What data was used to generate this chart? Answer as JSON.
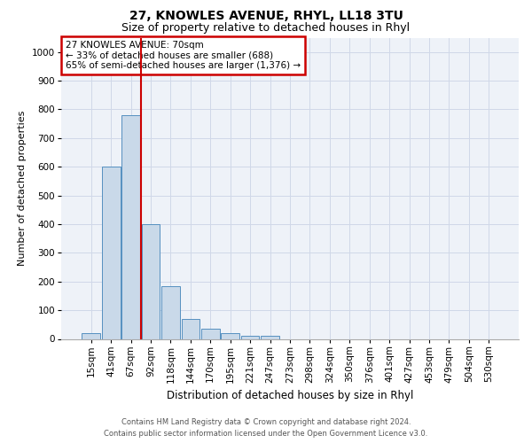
{
  "title": "27, KNOWLES AVENUE, RHYL, LL18 3TU",
  "subtitle": "Size of property relative to detached houses in Rhyl",
  "xlabel": "Distribution of detached houses by size in Rhyl",
  "ylabel": "Number of detached properties",
  "bin_labels": [
    "15sqm",
    "41sqm",
    "67sqm",
    "92sqm",
    "118sqm",
    "144sqm",
    "170sqm",
    "195sqm",
    "221sqm",
    "247sqm",
    "273sqm",
    "298sqm",
    "324sqm",
    "350sqm",
    "376sqm",
    "401sqm",
    "427sqm",
    "453sqm",
    "479sqm",
    "504sqm",
    "530sqm"
  ],
  "bar_heights": [
    20,
    600,
    780,
    400,
    185,
    70,
    35,
    20,
    10,
    12,
    0,
    0,
    0,
    0,
    0,
    0,
    0,
    0,
    0,
    0,
    0
  ],
  "bar_color": "#c9d9e9",
  "bar_edge_color": "#5590c0",
  "ylim": [
    0,
    1050
  ],
  "yticks": [
    0,
    100,
    200,
    300,
    400,
    500,
    600,
    700,
    800,
    900,
    1000
  ],
  "property_line_color": "#cc0000",
  "annotation_line1": "27 KNOWLES AVENUE: 70sqm",
  "annotation_line2": "← 33% of detached houses are smaller (688)",
  "annotation_line3": "65% of semi-detached houses are larger (1,376) →",
  "annotation_box_color": "#cc0000",
  "footer_line1": "Contains HM Land Registry data © Crown copyright and database right 2024.",
  "footer_line2": "Contains public sector information licensed under the Open Government Licence v3.0.",
  "grid_color": "#d0d8e8",
  "background_color": "#eef2f8",
  "title_fontsize": 10,
  "subtitle_fontsize": 9,
  "tick_fontsize": 7.5,
  "ylabel_fontsize": 8,
  "xlabel_fontsize": 8.5
}
